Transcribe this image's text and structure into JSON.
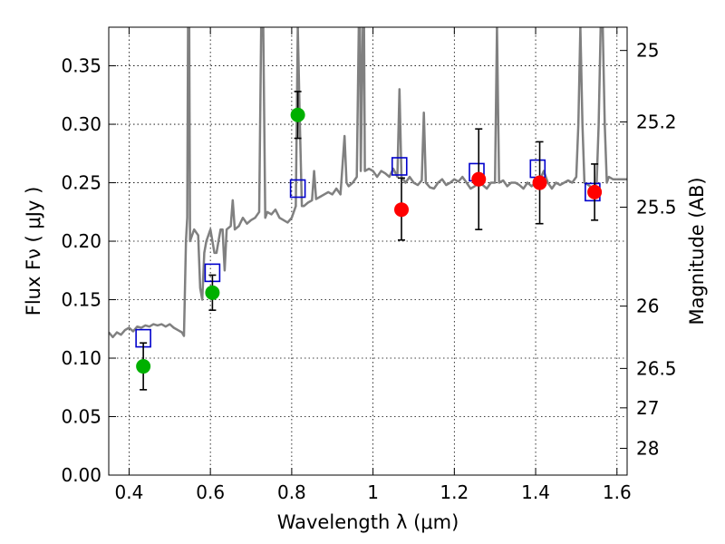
{
  "chart_data": {
    "type": "scatter",
    "xlabel": "Wavelength  λ (μm)",
    "ylabel": "Flux  Fν  ( μJy )",
    "ylabel_right": "Magnitude (AB)",
    "xlim": [
      0.35,
      1.625
    ],
    "ylim": [
      0.0,
      0.383
    ],
    "x_ticks": [
      {
        "value": 0.4,
        "label": "0.4"
      },
      {
        "value": 0.6,
        "label": "0.6"
      },
      {
        "value": 0.8,
        "label": "0.8"
      },
      {
        "value": 1.0,
        "label": "1"
      },
      {
        "value": 1.2,
        "label": "1.2"
      },
      {
        "value": 1.4,
        "label": "1.4"
      },
      {
        "value": 1.6,
        "label": "1.6"
      }
    ],
    "y_ticks": [
      {
        "value": 0.0,
        "label": "0.00"
      },
      {
        "value": 0.05,
        "label": "0.05"
      },
      {
        "value": 0.1,
        "label": "0.10"
      },
      {
        "value": 0.15,
        "label": "0.15"
      },
      {
        "value": 0.2,
        "label": "0.20"
      },
      {
        "value": 0.25,
        "label": "0.25"
      },
      {
        "value": 0.3,
        "label": "0.30"
      },
      {
        "value": 0.35,
        "label": "0.35"
      }
    ],
    "right_ticks": [
      {
        "flux": 0.3631,
        "label": "25"
      },
      {
        "flux": 0.302,
        "label": "25.2"
      },
      {
        "flux": 0.2291,
        "label": "25.5"
      },
      {
        "flux": 0.1445,
        "label": "26"
      },
      {
        "flux": 0.0912,
        "label": "26.5"
      },
      {
        "flux": 0.0575,
        "label": "27"
      },
      {
        "flux": 0.0229,
        "label": "28"
      }
    ],
    "grid": true,
    "series": [
      {
        "kind": "line",
        "color": "#808080",
        "points": [
          [
            0.35,
            0.122
          ],
          [
            0.36,
            0.118
          ],
          [
            0.37,
            0.122
          ],
          [
            0.38,
            0.12
          ],
          [
            0.39,
            0.124
          ],
          [
            0.4,
            0.126
          ],
          [
            0.41,
            0.123
          ],
          [
            0.42,
            0.127
          ],
          [
            0.43,
            0.126
          ],
          [
            0.44,
            0.128
          ],
          [
            0.45,
            0.127
          ],
          [
            0.46,
            0.129
          ],
          [
            0.47,
            0.128
          ],
          [
            0.48,
            0.129
          ],
          [
            0.49,
            0.127
          ],
          [
            0.5,
            0.129
          ],
          [
            0.51,
            0.126
          ],
          [
            0.52,
            0.124
          ],
          [
            0.53,
            0.122
          ],
          [
            0.535,
            0.119
          ],
          [
            0.54,
            0.2
          ],
          [
            0.543,
            0.22
          ],
          [
            0.545,
            0.383
          ],
          [
            0.548,
            0.383
          ],
          [
            0.55,
            0.2
          ],
          [
            0.56,
            0.21
          ],
          [
            0.57,
            0.205
          ],
          [
            0.575,
            0.16
          ],
          [
            0.58,
            0.15
          ],
          [
            0.585,
            0.19
          ],
          [
            0.59,
            0.2
          ],
          [
            0.6,
            0.21
          ],
          [
            0.61,
            0.19
          ],
          [
            0.615,
            0.19
          ],
          [
            0.62,
            0.2
          ],
          [
            0.625,
            0.21
          ],
          [
            0.63,
            0.21
          ],
          [
            0.635,
            0.175
          ],
          [
            0.64,
            0.21
          ],
          [
            0.65,
            0.213
          ],
          [
            0.655,
            0.235
          ],
          [
            0.66,
            0.21
          ],
          [
            0.67,
            0.213
          ],
          [
            0.68,
            0.22
          ],
          [
            0.69,
            0.215
          ],
          [
            0.7,
            0.218
          ],
          [
            0.71,
            0.22
          ],
          [
            0.72,
            0.225
          ],
          [
            0.725,
            0.383
          ],
          [
            0.73,
            0.383
          ],
          [
            0.735,
            0.22
          ],
          [
            0.74,
            0.225
          ],
          [
            0.75,
            0.223
          ],
          [
            0.76,
            0.227
          ],
          [
            0.77,
            0.22
          ],
          [
            0.78,
            0.218
          ],
          [
            0.79,
            0.216
          ],
          [
            0.8,
            0.22
          ],
          [
            0.81,
            0.23
          ],
          [
            0.815,
            0.383
          ],
          [
            0.82,
            0.3
          ],
          [
            0.825,
            0.23
          ],
          [
            0.83,
            0.23
          ],
          [
            0.84,
            0.233
          ],
          [
            0.85,
            0.235
          ],
          [
            0.855,
            0.26
          ],
          [
            0.86,
            0.236
          ],
          [
            0.87,
            0.238
          ],
          [
            0.88,
            0.24
          ],
          [
            0.89,
            0.242
          ],
          [
            0.9,
            0.24
          ],
          [
            0.91,
            0.245
          ],
          [
            0.92,
            0.24
          ],
          [
            0.93,
            0.29
          ],
          [
            0.935,
            0.25
          ],
          [
            0.94,
            0.247
          ],
          [
            0.95,
            0.25
          ],
          [
            0.96,
            0.255
          ],
          [
            0.965,
            0.383
          ],
          [
            0.968,
            0.383
          ],
          [
            0.97,
            0.26
          ],
          [
            0.975,
            0.383
          ],
          [
            0.978,
            0.383
          ],
          [
            0.98,
            0.26
          ],
          [
            0.99,
            0.262
          ],
          [
            1.0,
            0.26
          ],
          [
            1.01,
            0.255
          ],
          [
            1.02,
            0.26
          ],
          [
            1.03,
            0.258
          ],
          [
            1.04,
            0.255
          ],
          [
            1.05,
            0.262
          ],
          [
            1.06,
            0.255
          ],
          [
            1.065,
            0.33
          ],
          [
            1.07,
            0.255
          ],
          [
            1.08,
            0.25
          ],
          [
            1.09,
            0.255
          ],
          [
            1.1,
            0.25
          ],
          [
            1.11,
            0.248
          ],
          [
            1.12,
            0.252
          ],
          [
            1.125,
            0.31
          ],
          [
            1.13,
            0.25
          ],
          [
            1.14,
            0.246
          ],
          [
            1.15,
            0.245
          ],
          [
            1.16,
            0.25
          ],
          [
            1.17,
            0.253
          ],
          [
            1.18,
            0.248
          ],
          [
            1.19,
            0.25
          ],
          [
            1.2,
            0.253
          ],
          [
            1.21,
            0.251
          ],
          [
            1.22,
            0.255
          ],
          [
            1.23,
            0.25
          ],
          [
            1.24,
            0.245
          ],
          [
            1.25,
            0.247
          ],
          [
            1.26,
            0.25
          ],
          [
            1.27,
            0.248
          ],
          [
            1.28,
            0.245
          ],
          [
            1.29,
            0.25
          ],
          [
            1.3,
            0.25
          ],
          [
            1.305,
            0.383
          ],
          [
            1.31,
            0.25
          ],
          [
            1.32,
            0.252
          ],
          [
            1.33,
            0.247
          ],
          [
            1.34,
            0.25
          ],
          [
            1.35,
            0.25
          ],
          [
            1.36,
            0.248
          ],
          [
            1.37,
            0.245
          ],
          [
            1.38,
            0.25
          ],
          [
            1.39,
            0.247
          ],
          [
            1.4,
            0.25
          ],
          [
            1.41,
            0.252
          ],
          [
            1.42,
            0.26
          ],
          [
            1.43,
            0.25
          ],
          [
            1.44,
            0.245
          ],
          [
            1.45,
            0.25
          ],
          [
            1.46,
            0.248
          ],
          [
            1.47,
            0.25
          ],
          [
            1.48,
            0.252
          ],
          [
            1.49,
            0.25
          ],
          [
            1.5,
            0.255
          ],
          [
            1.505,
            0.3
          ],
          [
            1.51,
            0.383
          ],
          [
            1.515,
            0.3
          ],
          [
            1.52,
            0.25
          ],
          [
            1.53,
            0.248
          ],
          [
            1.54,
            0.245
          ],
          [
            1.55,
            0.25
          ],
          [
            1.555,
            0.3
          ],
          [
            1.56,
            0.383
          ],
          [
            1.565,
            0.383
          ],
          [
            1.57,
            0.3
          ],
          [
            1.575,
            0.25
          ],
          [
            1.58,
            0.255
          ],
          [
            1.59,
            0.253
          ],
          [
            1.6,
            0.253
          ],
          [
            1.61,
            0.253
          ],
          [
            1.625,
            0.253
          ]
        ]
      },
      {
        "kind": "open-square",
        "color": "#0000cc",
        "points": [
          [
            0.435,
            0.117
          ],
          [
            0.605,
            0.173
          ],
          [
            0.815,
            0.245
          ],
          [
            1.065,
            0.264
          ],
          [
            1.255,
            0.259
          ],
          [
            1.405,
            0.262
          ],
          [
            1.54,
            0.242
          ]
        ]
      },
      {
        "kind": "filled-circle",
        "color": "#00b000",
        "points": [
          {
            "x": 0.435,
            "y": 0.093,
            "yerr": [
              0.02,
              0.02
            ]
          },
          {
            "x": 0.605,
            "y": 0.156,
            "yerr": [
              0.015,
              0.015
            ]
          },
          {
            "x": 0.815,
            "y": 0.308,
            "yerr": [
              0.02,
              0.02
            ]
          }
        ]
      },
      {
        "kind": "filled-circle",
        "color": "#ff0000",
        "points": [
          {
            "x": 1.07,
            "y": 0.227,
            "yerr": [
              0.026,
              0.027
            ]
          },
          {
            "x": 1.26,
            "y": 0.253,
            "yerr": [
              0.043,
              0.043
            ]
          },
          {
            "x": 1.41,
            "y": 0.25,
            "yerr": [
              0.035,
              0.035
            ]
          },
          {
            "x": 1.545,
            "y": 0.242,
            "yerr": [
              0.024,
              0.024
            ]
          }
        ]
      }
    ]
  }
}
